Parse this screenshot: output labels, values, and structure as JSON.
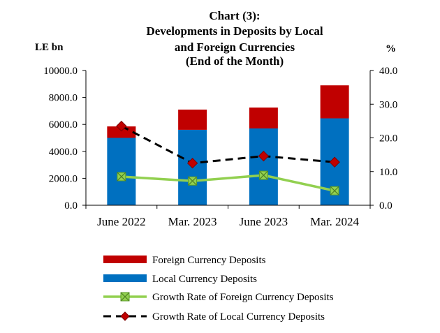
{
  "chart_data": {
    "type": "bar",
    "title_lines": [
      "Chart (3):",
      "Developments in Deposits by Local",
      "and Foreign Currencies",
      "(End of the Month)"
    ],
    "left_axis_unit": "LE bn",
    "right_axis_unit": "%",
    "categories": [
      "June 2022",
      "Mar. 2023",
      "June 2023",
      "Mar. 2024"
    ],
    "left_ylim": [
      0,
      10000
    ],
    "left_ticks": [
      "0.0",
      "2000.0",
      "4000.0",
      "6000.0",
      "8000.0",
      "10000.0"
    ],
    "right_ylim": [
      0,
      40
    ],
    "right_ticks": [
      "0.0",
      "10.0",
      "20.0",
      "30.0",
      "40.0"
    ],
    "grid": false,
    "legend_position": "bottom",
    "series": [
      {
        "name": "Foreign Currency Deposits",
        "kind": "stacked-bar",
        "axis": "left",
        "color": "#c00000",
        "values": [
          850,
          1500,
          1550,
          2450
        ]
      },
      {
        "name": "Local Currency Deposits",
        "kind": "stacked-bar",
        "axis": "left",
        "color": "#0070c0",
        "values": [
          5000,
          5600,
          5700,
          6450
        ]
      },
      {
        "name": "Growth Rate of Foreign Currency Deposits",
        "kind": "line",
        "axis": "right",
        "color": "#92d050",
        "marker": "square-x",
        "values": [
          8.5,
          7.2,
          8.9,
          4.3
        ]
      },
      {
        "name": "Growth Rate of Local Currency Deposits",
        "kind": "dashed-line",
        "axis": "right",
        "color": "#000000",
        "marker_color": "#c00000",
        "marker": "diamond",
        "values": [
          23.5,
          12.5,
          14.6,
          12.8
        ]
      }
    ]
  }
}
